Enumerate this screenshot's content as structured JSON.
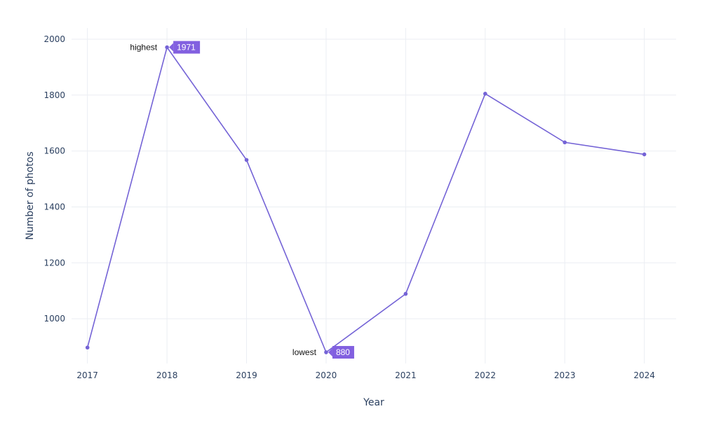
{
  "chart_data": {
    "type": "line",
    "xlabel": "Year",
    "ylabel": "Number of photos",
    "x": [
      2017,
      2018,
      2019,
      2020,
      2021,
      2022,
      2023,
      2024
    ],
    "x_tick_labels": [
      "2017",
      "2018",
      "2019",
      "2020",
      "2021",
      "2022",
      "2023",
      "2024"
    ],
    "y_tick_values": [
      1000,
      1200,
      1400,
      1600,
      1800,
      2000
    ],
    "y_tick_labels": [
      "1000",
      "1200",
      "1400",
      "1600",
      "1800",
      "2000"
    ],
    "xlim": [
      2016.8,
      2024.4
    ],
    "ylim": [
      840,
      2040
    ],
    "grid": true,
    "series": [
      {
        "values": [
          897,
          1971,
          1568,
          880,
          1089,
          1805,
          1631,
          1588
        ],
        "color": "#7463d6"
      }
    ],
    "annotations": [
      {
        "label": "highest",
        "value": "1971",
        "x": 2018,
        "y": 1971,
        "badge_color": "#8260e0"
      },
      {
        "label": "lowest",
        "value": "880",
        "x": 2020,
        "y": 880,
        "badge_color": "#8260e0"
      }
    ]
  }
}
